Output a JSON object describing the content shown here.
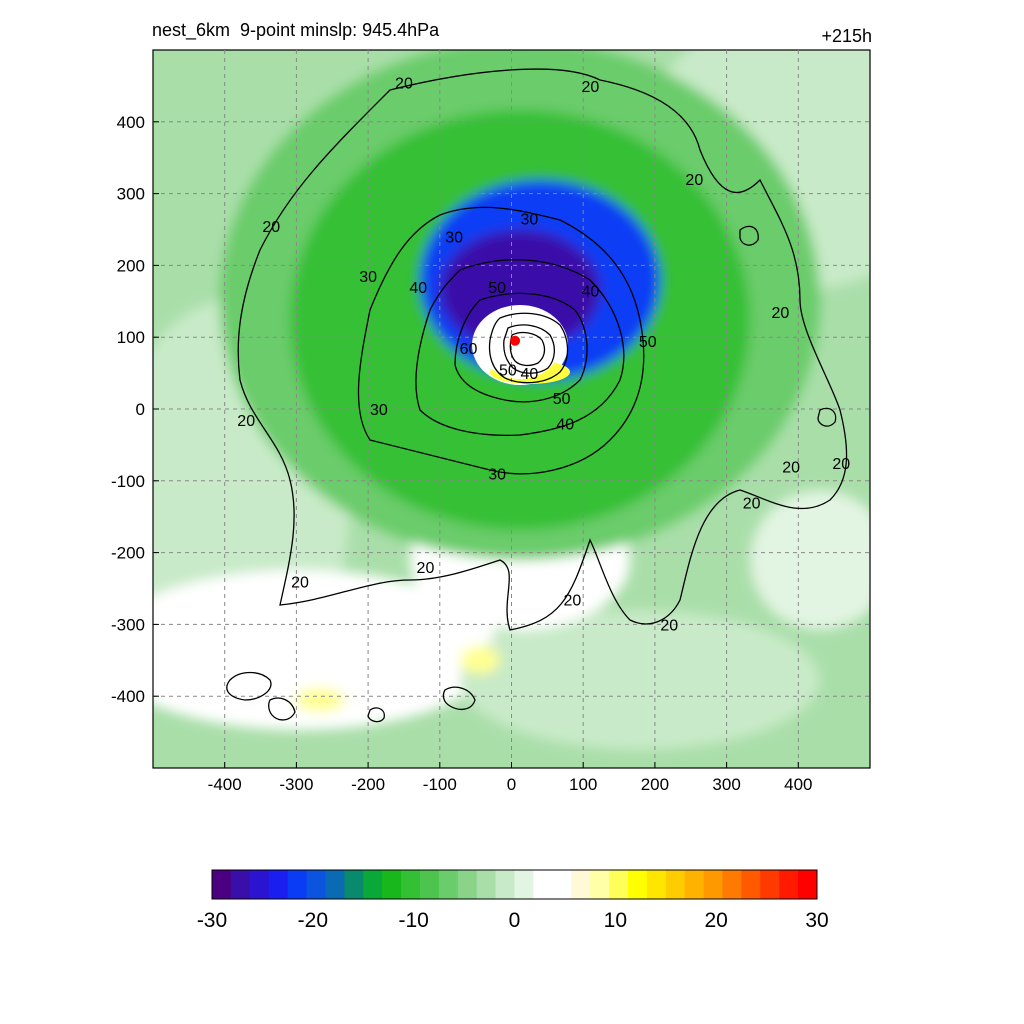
{
  "title_left": "nest_6km  9-point minslp: 945.4hPa",
  "title_right": "+215h",
  "colors": {
    "ramp": [
      "#4b0082",
      "#3a0ea8",
      "#2a14d0",
      "#1a1ff0",
      "#0a3cf5",
      "#0b54e0",
      "#0a6ab4",
      "#098a6c",
      "#0aa838",
      "#18b81c",
      "#34c034",
      "#4dc44d",
      "#6acc6a",
      "#8ad48a",
      "#a9dea9",
      "#c8eac8",
      "#e2f4e2",
      "#ffffff",
      "#ffffff",
      "#fff9d8",
      "#ffffa8",
      "#ffff5a",
      "#ffff00",
      "#ffe600",
      "#ffcc00",
      "#ffb300",
      "#ff9900",
      "#ff7a00",
      "#ff5a00",
      "#ff3a00",
      "#ff1a00",
      "#ff0000"
    ],
    "center_marker": "#ff0000"
  },
  "chart_data": {
    "type": "heatmap",
    "title": "nest_6km  9-point minslp: 945.4hPa",
    "annotation": "+215h",
    "xlim": [
      -500,
      500
    ],
    "ylim": [
      -500,
      500
    ],
    "x_ticks": [
      -400,
      -300,
      -200,
      -100,
      0,
      100,
      200,
      300,
      400
    ],
    "y_ticks": [
      400,
      300,
      200,
      100,
      0,
      -100,
      -200,
      -300,
      -400
    ],
    "grid": true,
    "grid_style": "dashed",
    "storm_center": {
      "x": 5,
      "y": 95
    },
    "colorbar": {
      "range": [
        -30,
        30
      ],
      "ticks": [
        -30,
        -20,
        -10,
        0,
        10,
        20,
        30
      ],
      "placement": "bottom"
    },
    "contour_levels": [
      20,
      30,
      40,
      50,
      60
    ],
    "contour_labels": [
      {
        "text": "20",
        "x": -150,
        "y": 455
      },
      {
        "text": "20",
        "x": 110,
        "y": 450
      },
      {
        "text": "20",
        "x": 255,
        "y": 320
      },
      {
        "text": "20",
        "x": -335,
        "y": 255
      },
      {
        "text": "20",
        "x": 375,
        "y": 135
      },
      {
        "text": "20",
        "x": -370,
        "y": -15
      },
      {
        "text": "20",
        "x": 390,
        "y": -80
      },
      {
        "text": "20",
        "x": 460,
        "y": -75
      },
      {
        "text": "20",
        "x": 335,
        "y": -130
      },
      {
        "text": "20",
        "x": -295,
        "y": -240
      },
      {
        "text": "20",
        "x": -120,
        "y": -220
      },
      {
        "text": "20",
        "x": 85,
        "y": -265
      },
      {
        "text": "20",
        "x": 220,
        "y": -300
      },
      {
        "text": "30",
        "x": 25,
        "y": 265
      },
      {
        "text": "30",
        "x": -80,
        "y": 240
      },
      {
        "text": "30",
        "x": -200,
        "y": 185
      },
      {
        "text": "30",
        "x": -185,
        "y": 0
      },
      {
        "text": "30",
        "x": -20,
        "y": -90
      },
      {
        "text": "40",
        "x": -130,
        "y": 170
      },
      {
        "text": "40",
        "x": 110,
        "y": 165
      },
      {
        "text": "40",
        "x": 25,
        "y": 50
      },
      {
        "text": "40",
        "x": 75,
        "y": -20
      },
      {
        "text": "50",
        "x": -20,
        "y": 170
      },
      {
        "text": "50",
        "x": 190,
        "y": 95
      },
      {
        "text": "50",
        "x": 70,
        "y": 15
      },
      {
        "text": "60",
        "x": -60,
        "y": 85
      },
      {
        "text": "50",
        "x": -5,
        "y": 55
      }
    ]
  }
}
